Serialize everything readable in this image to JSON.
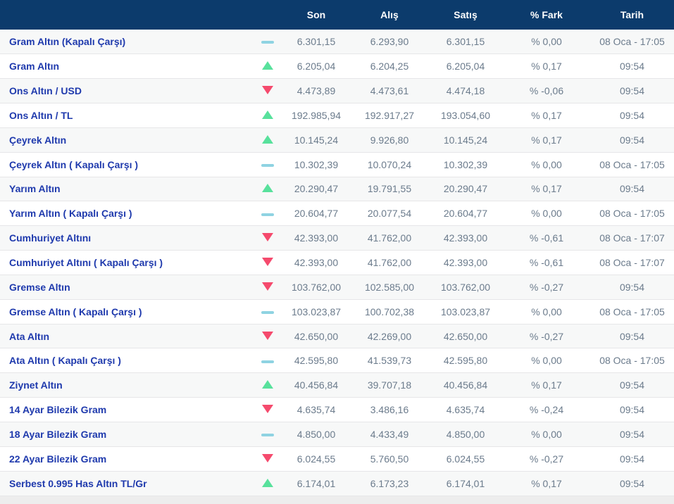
{
  "table": {
    "columns": {
      "name": "",
      "trend": "",
      "son": "Son",
      "alis": "Alış",
      "satis": "Satış",
      "fark": "% Fark",
      "tarih": "Tarih"
    },
    "rows": [
      {
        "name": "Gram Altın (Kapalı Çarşı)",
        "trend": "flat",
        "son": "6.301,15",
        "alis": "6.293,90",
        "satis": "6.301,15",
        "fark": "% 0,00",
        "tarih": "08 Oca - 17:05"
      },
      {
        "name": "Gram Altın",
        "trend": "up",
        "son": "6.205,04",
        "alis": "6.204,25",
        "satis": "6.205,04",
        "fark": "% 0,17",
        "tarih": "09:54"
      },
      {
        "name": "Ons Altın / USD",
        "trend": "down",
        "son": "4.473,89",
        "alis": "4.473,61",
        "satis": "4.474,18",
        "fark": "% -0,06",
        "tarih": "09:54"
      },
      {
        "name": "Ons Altın / TL",
        "trend": "up",
        "son": "192.985,94",
        "alis": "192.917,27",
        "satis": "193.054,60",
        "fark": "% 0,17",
        "tarih": "09:54"
      },
      {
        "name": "Çeyrek Altın",
        "trend": "up",
        "son": "10.145,24",
        "alis": "9.926,80",
        "satis": "10.145,24",
        "fark": "% 0,17",
        "tarih": "09:54"
      },
      {
        "name": "Çeyrek Altın ( Kapalı Çarşı )",
        "trend": "flat",
        "son": "10.302,39",
        "alis": "10.070,24",
        "satis": "10.302,39",
        "fark": "% 0,00",
        "tarih": "08 Oca - 17:05"
      },
      {
        "name": "Yarım Altın",
        "trend": "up",
        "son": "20.290,47",
        "alis": "19.791,55",
        "satis": "20.290,47",
        "fark": "% 0,17",
        "tarih": "09:54"
      },
      {
        "name": "Yarım Altın ( Kapalı Çarşı )",
        "trend": "flat",
        "son": "20.604,77",
        "alis": "20.077,54",
        "satis": "20.604,77",
        "fark": "% 0,00",
        "tarih": "08 Oca - 17:05"
      },
      {
        "name": "Cumhuriyet Altını",
        "trend": "down",
        "son": "42.393,00",
        "alis": "41.762,00",
        "satis": "42.393,00",
        "fark": "% -0,61",
        "tarih": "08 Oca - 17:07"
      },
      {
        "name": "Cumhuriyet Altını ( Kapalı Çarşı )",
        "trend": "down",
        "son": "42.393,00",
        "alis": "41.762,00",
        "satis": "42.393,00",
        "fark": "% -0,61",
        "tarih": "08 Oca - 17:07"
      },
      {
        "name": "Gremse Altın",
        "trend": "down",
        "son": "103.762,00",
        "alis": "102.585,00",
        "satis": "103.762,00",
        "fark": "% -0,27",
        "tarih": "09:54"
      },
      {
        "name": "Gremse Altın ( Kapalı Çarşı )",
        "trend": "flat",
        "son": "103.023,87",
        "alis": "100.702,38",
        "satis": "103.023,87",
        "fark": "% 0,00",
        "tarih": "08 Oca - 17:05"
      },
      {
        "name": "Ata Altın",
        "trend": "down",
        "son": "42.650,00",
        "alis": "42.269,00",
        "satis": "42.650,00",
        "fark": "% -0,27",
        "tarih": "09:54"
      },
      {
        "name": "Ata Altın ( Kapalı Çarşı )",
        "trend": "flat",
        "son": "42.595,80",
        "alis": "41.539,73",
        "satis": "42.595,80",
        "fark": "% 0,00",
        "tarih": "08 Oca - 17:05"
      },
      {
        "name": "Ziynet Altın",
        "trend": "up",
        "son": "40.456,84",
        "alis": "39.707,18",
        "satis": "40.456,84",
        "fark": "% 0,17",
        "tarih": "09:54"
      },
      {
        "name": "14 Ayar Bilezik Gram",
        "trend": "down",
        "son": "4.635,74",
        "alis": "3.486,16",
        "satis": "4.635,74",
        "fark": "% -0,24",
        "tarih": "09:54"
      },
      {
        "name": "18 Ayar Bilezik Gram",
        "trend": "flat",
        "son": "4.850,00",
        "alis": "4.433,49",
        "satis": "4.850,00",
        "fark": "% 0,00",
        "tarih": "09:54"
      },
      {
        "name": "22 Ayar Bilezik Gram",
        "trend": "down",
        "son": "6.024,55",
        "alis": "5.760,50",
        "satis": "6.024,55",
        "fark": "% -0,27",
        "tarih": "09:54"
      },
      {
        "name": "Serbest 0.995 Has Altın TL/Gr",
        "trend": "up",
        "son": "6.174,01",
        "alis": "6.173,23",
        "satis": "6.174,01",
        "fark": "% 0,17",
        "tarih": "09:54"
      }
    ]
  },
  "colors": {
    "header_bg": "#0c3b6c",
    "header_text": "#ffffff",
    "label": "#1f3aad",
    "value": "#6b7b8c",
    "up": "#58e19c",
    "down": "#f54a6d",
    "flat": "#8fd3e2",
    "alt_row_bg": "#f7f8f8",
    "border": "#e6e6e8",
    "footer_bg": "#ededed"
  }
}
